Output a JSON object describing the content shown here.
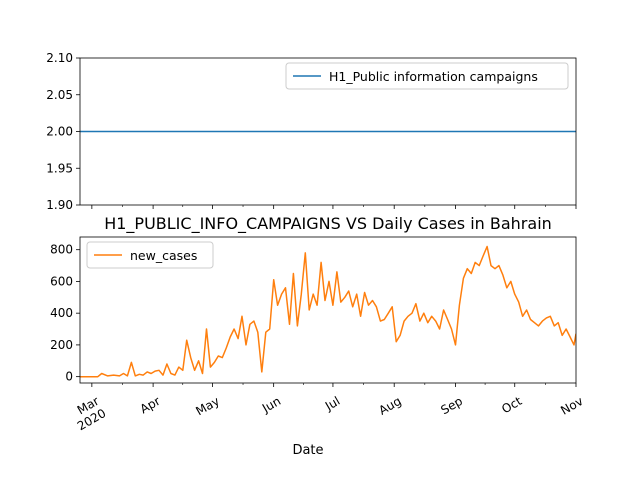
{
  "chart_data": [
    {
      "type": "line",
      "title": "",
      "xlabel": "",
      "ylabel": "",
      "ylim": [
        1.9,
        2.1
      ],
      "yticks": [
        "1.90",
        "1.95",
        "2.00",
        "2.05",
        "2.10"
      ],
      "ytick_values": [
        1.9,
        1.95,
        2.0,
        2.05,
        2.1
      ],
      "xlim": [
        "2020-02-24",
        "2020-11-01"
      ],
      "legend": "top-right",
      "grid": false,
      "series": [
        {
          "name": "H1_Public information campaigns",
          "color": "#1f77b4",
          "x": [
            "2020-02-24",
            "2020-11-01"
          ],
          "values": [
            2,
            2
          ]
        }
      ]
    },
    {
      "type": "line",
      "title": "H1_PUBLIC_INFO_CAMPAIGNS VS Daily Cases in Bahrain",
      "xlabel": "Date",
      "ylabel": "",
      "ylim": [
        -40,
        880
      ],
      "yticks": [
        "0",
        "200",
        "400",
        "600",
        "800"
      ],
      "ytick_values": [
        0,
        200,
        400,
        600,
        800
      ],
      "xlim": [
        "2020-02-24",
        "2020-11-01"
      ],
      "xticks": [
        "Mar\n2020",
        "Apr",
        "May",
        "Jun",
        "Jul",
        "Aug",
        "Sep",
        "Oct",
        "Nov"
      ],
      "xtick_dates": [
        "2020-03-01",
        "2020-04-01",
        "2020-05-01",
        "2020-06-01",
        "2020-07-01",
        "2020-08-01",
        "2020-09-01",
        "2020-10-01",
        "2020-11-01"
      ],
      "legend": "top-left",
      "grid": false,
      "series": [
        {
          "name": "new_cases",
          "color": "#ff7f0e",
          "x": [
            "2020-02-24",
            "2020-03-01",
            "2020-03-04",
            "2020-03-06",
            "2020-03-09",
            "2020-03-12",
            "2020-03-15",
            "2020-03-17",
            "2020-03-19",
            "2020-03-21",
            "2020-03-23",
            "2020-03-25",
            "2020-03-27",
            "2020-03-29",
            "2020-03-31",
            "2020-04-02",
            "2020-04-04",
            "2020-04-06",
            "2020-04-08",
            "2020-04-10",
            "2020-04-12",
            "2020-04-14",
            "2020-04-16",
            "2020-04-18",
            "2020-04-20",
            "2020-04-22",
            "2020-04-24",
            "2020-04-26",
            "2020-04-28",
            "2020-04-30",
            "2020-05-02",
            "2020-05-04",
            "2020-05-06",
            "2020-05-08",
            "2020-05-10",
            "2020-05-12",
            "2020-05-14",
            "2020-05-16",
            "2020-05-18",
            "2020-05-20",
            "2020-05-22",
            "2020-05-24",
            "2020-05-26",
            "2020-05-28",
            "2020-05-30",
            "2020-06-01",
            "2020-06-03",
            "2020-06-05",
            "2020-06-07",
            "2020-06-09",
            "2020-06-11",
            "2020-06-13",
            "2020-06-15",
            "2020-06-17",
            "2020-06-19",
            "2020-06-21",
            "2020-06-23",
            "2020-06-25",
            "2020-06-27",
            "2020-06-29",
            "2020-07-01",
            "2020-07-03",
            "2020-07-05",
            "2020-07-07",
            "2020-07-09",
            "2020-07-11",
            "2020-07-13",
            "2020-07-15",
            "2020-07-17",
            "2020-07-19",
            "2020-07-21",
            "2020-07-23",
            "2020-07-25",
            "2020-07-27",
            "2020-07-29",
            "2020-07-31",
            "2020-08-02",
            "2020-08-04",
            "2020-08-06",
            "2020-08-08",
            "2020-08-10",
            "2020-08-12",
            "2020-08-14",
            "2020-08-16",
            "2020-08-18",
            "2020-08-20",
            "2020-08-22",
            "2020-08-24",
            "2020-08-26",
            "2020-08-28",
            "2020-08-30",
            "2020-09-01",
            "2020-09-03",
            "2020-09-05",
            "2020-09-07",
            "2020-09-09",
            "2020-09-11",
            "2020-09-13",
            "2020-09-15",
            "2020-09-17",
            "2020-09-19",
            "2020-09-21",
            "2020-09-23",
            "2020-09-25",
            "2020-09-27",
            "2020-09-29",
            "2020-10-01",
            "2020-10-03",
            "2020-10-05",
            "2020-10-07",
            "2020-10-09",
            "2020-10-11",
            "2020-10-13",
            "2020-10-15",
            "2020-10-17",
            "2020-10-19",
            "2020-10-21",
            "2020-10-23",
            "2020-10-25",
            "2020-10-27",
            "2020-10-29",
            "2020-10-31",
            "2020-11-01"
          ],
          "values": [
            0,
            0,
            0,
            20,
            5,
            10,
            5,
            20,
            5,
            90,
            5,
            15,
            10,
            30,
            20,
            35,
            40,
            10,
            80,
            20,
            10,
            60,
            40,
            230,
            120,
            40,
            100,
            20,
            300,
            60,
            90,
            130,
            120,
            180,
            250,
            300,
            240,
            380,
            200,
            330,
            350,
            280,
            30,
            280,
            300,
            610,
            450,
            520,
            560,
            330,
            650,
            320,
            520,
            780,
            420,
            520,
            450,
            720,
            480,
            600,
            450,
            660,
            470,
            500,
            540,
            440,
            520,
            380,
            530,
            450,
            480,
            440,
            350,
            360,
            400,
            440,
            220,
            260,
            350,
            380,
            400,
            460,
            350,
            400,
            340,
            380,
            350,
            300,
            420,
            360,
            300,
            200,
            450,
            620,
            680,
            650,
            720,
            700,
            760,
            820,
            700,
            680,
            700,
            640,
            560,
            600,
            520,
            470,
            380,
            420,
            360,
            340,
            320,
            350,
            370,
            380,
            320,
            340,
            260,
            300,
            250,
            200,
            270
          ]
        }
      ]
    }
  ]
}
